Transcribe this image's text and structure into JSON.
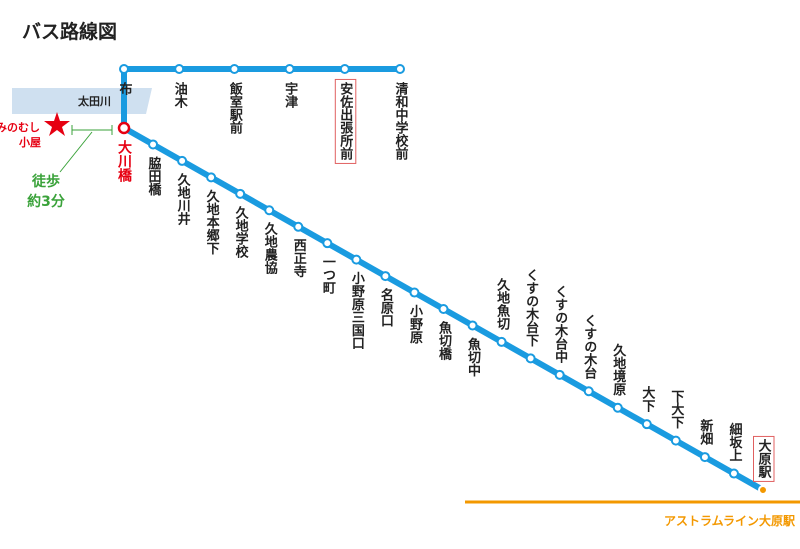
{
  "header": {
    "title": "バス路線図"
  },
  "river": {
    "label": "太田川"
  },
  "landmark": {
    "label_lines": [
      "みのむし",
      "小屋"
    ]
  },
  "walk": {
    "label_lines": [
      "徒歩",
      "約3分"
    ]
  },
  "top_branch": {
    "stops": [
      "布",
      "油木",
      "飯室駅前",
      "宇津",
      "安佐出張所前",
      "清和中学校前"
    ]
  },
  "junction": {
    "label": "大川橋"
  },
  "main_line": {
    "stops": [
      "脇田橋",
      "久地川井",
      "久地本郷下",
      "久地学校",
      "久地農協",
      "西正寺",
      "一つ町",
      "小野原三国口",
      "名原口",
      "小野原",
      "魚切橋",
      "魚切中",
      "久地魚切",
      "くすの木台下",
      "くすの木台中",
      "くすの木台",
      "久地境原",
      "大下",
      "下大下",
      "新畑",
      "細坂上",
      "大原駅"
    ]
  },
  "rail": {
    "label": "アストラムライン大原駅"
  }
}
